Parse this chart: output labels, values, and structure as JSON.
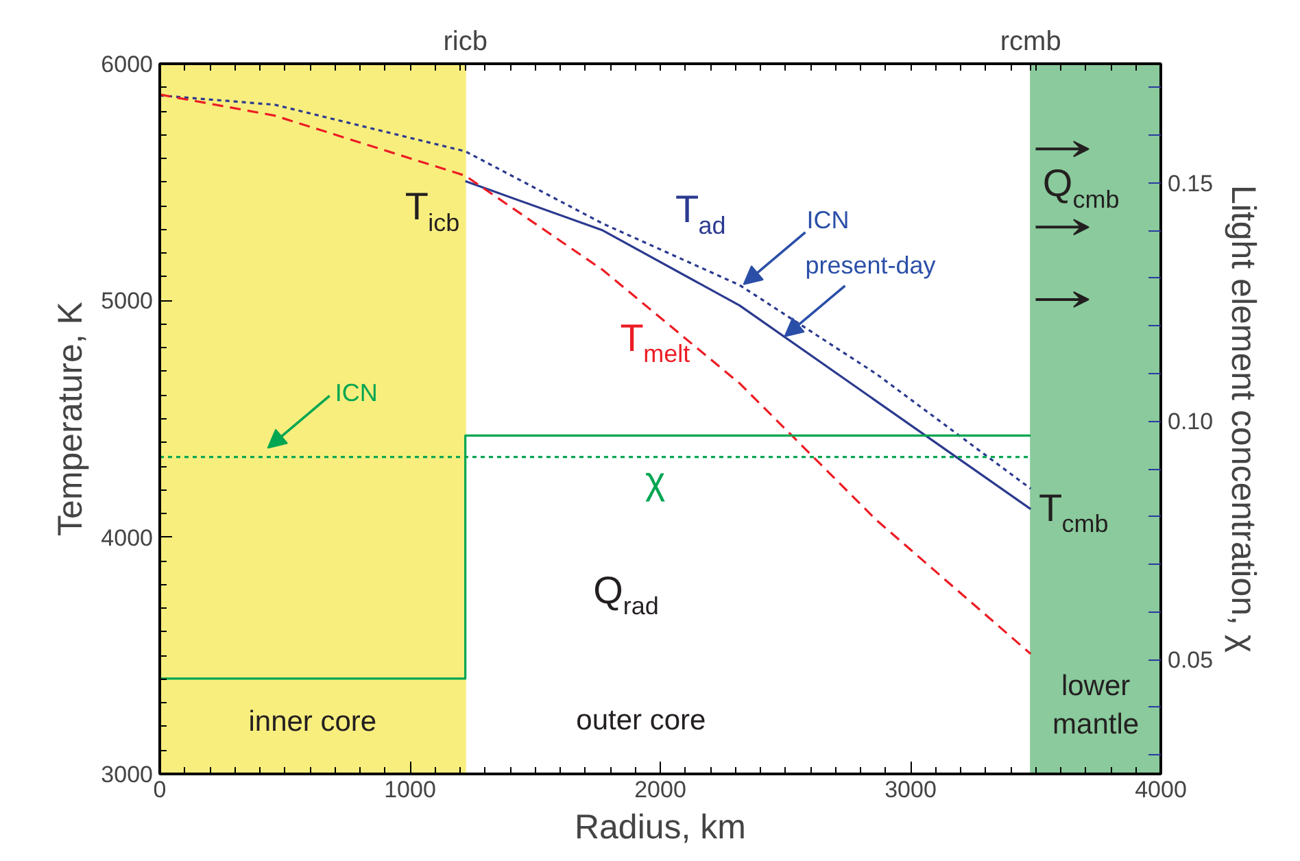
{
  "chart_data": {
    "type": "line",
    "xlabel": "Radius, km",
    "ylabel": "Temperature, K",
    "y2label": "Litght element concentration, χ",
    "xlim": [
      0,
      4000
    ],
    "xticks": [
      0,
      1000,
      2000,
      3000,
      4000
    ],
    "ylim": [
      3000,
      6000
    ],
    "yticks": [
      3000,
      4000,
      5000,
      6000
    ],
    "y2lim": [
      0.026,
      0.175
    ],
    "y2ticks": [
      0.05,
      {
        "value": 0.1,
        "label": "0.10"
      },
      0.15
    ],
    "ref_lines": [
      {
        "axis": "x",
        "value": 1221,
        "label": "ricb",
        "color": "#f8ee7e"
      },
      {
        "axis": "x",
        "value": 3480,
        "label": "rcmb",
        "color": "#8aca9c"
      }
    ],
    "x": [
      0,
      459,
      1221,
      1770,
      2317,
      2863,
      3480
    ],
    "series": [
      {
        "color": "#2b3a8f",
        "line_style": "dotted",
        "values": [
          5866,
          5827,
          5630,
          5325,
          5065,
          4690,
          4205
        ]
      },
      {
        "color": "#2b3a8f",
        "line_style": "solid",
        "values": [
          null,
          null,
          5504,
          5296,
          4979,
          4575,
          4119
        ]
      },
      {
        "color": "#ec1c24",
        "line_style": "dashed",
        "values": [
          5870,
          5781,
          5527,
          5129,
          4650,
          4073,
          3507
        ]
      },
      {
        "color": "#00a651",
        "line_style": "solid",
        "axis": "y2",
        "x": [
          0,
          1221,
          1221,
          3480
        ],
        "values": [
          0.046,
          0.046,
          0.097,
          0.097
        ]
      },
      {
        "color": "#00a651",
        "line_style": "dotted",
        "axis": "y2",
        "x": [
          0,
          3480
        ],
        "values": [
          0.0925,
          0.0925
        ]
      }
    ],
    "bands": [
      {
        "axis": "x",
        "from": 0,
        "to": 1221,
        "label": "inner core",
        "color": "#f8ee7e"
      },
      {
        "axis": "x",
        "from": 3480,
        "to": 4000,
        "label": "lower\nmantle",
        "color": "#8aca9c"
      }
    ],
    "annotations": [
      "T$_{icb}$",
      "T$_{ad}$",
      "T$_{melt}$",
      "χ",
      "T$_{cmb}$",
      "Q$_{cmb}$",
      "Q$_{rad}$",
      "outer core",
      {
        "text": "ICN",
        "x": 2333,
        "y": 5068
      },
      {
        "text": "present-day",
        "x": 2497,
        "y": 4848
      },
      "ICN"
    ],
    "grid": false
  }
}
